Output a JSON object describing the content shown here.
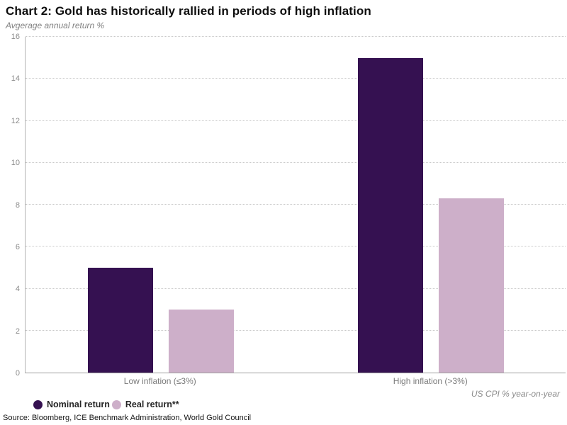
{
  "title": "Chart 2: Gold has historically rallied in periods of high inflation",
  "subtitle": "Avgerage annual return %",
  "x_axis_label": "US CPI % year-on-year",
  "source": "Source: Bloomberg, ICE Benchmark Administration, World Gold Council",
  "colors": {
    "nominal": "#351151",
    "real": "#cdafc9",
    "gridline": "#c9c9c9",
    "axis": "#a6a6a6",
    "tick_text": "#8c8c8c"
  },
  "legend": [
    {
      "label": "Nominal return",
      "color": "#351151"
    },
    {
      "label": "Real return**",
      "color": "#cdafc9"
    }
  ],
  "chart_data": {
    "type": "bar",
    "title": "Chart 2: Gold has historically rallied in periods of high inflation",
    "subtitle": "Avgerage annual return %",
    "categories": [
      "Low inflation (≤3%)",
      "High inflation (>3%)"
    ],
    "series": [
      {
        "name": "Nominal return",
        "color": "#351151",
        "values": [
          5.0,
          15.0
        ]
      },
      {
        "name": "Real return**",
        "color": "#cdafc9",
        "values": [
          3.0,
          8.3
        ]
      }
    ],
    "xlabel": "US CPI % year-on-year",
    "ylabel": "Avgerage annual return %",
    "ylim": [
      0,
      16
    ],
    "yticks": [
      0,
      2,
      4,
      6,
      8,
      10,
      12,
      14,
      16
    ],
    "grid": "horizontal-dotted",
    "legend_position": "bottom-left"
  }
}
